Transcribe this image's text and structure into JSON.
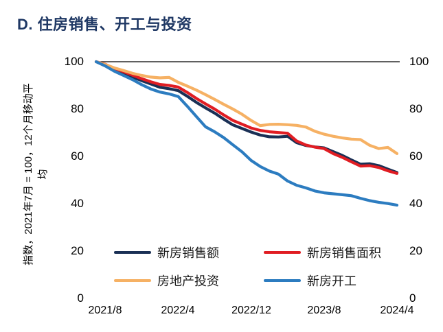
{
  "title": "D. 住房销售、开工与投资",
  "title_color": "#1F3864",
  "y_axis_label": "指数，2021年7月 = 100，12个月移动平均",
  "y_axis_label_line1": "指数，2021年7月 = 100，12个月移动平",
  "y_axis_label_line2": "均",
  "chart_data": {
    "type": "line",
    "title": "D. 住房销售、开工与投资",
    "xlabel": "",
    "ylabel": "指数，2021年7月 = 100，12个月移动平均",
    "ylim": [
      0,
      100
    ],
    "yticks": [
      100,
      80,
      60,
      40,
      20,
      0
    ],
    "y_axis_mirrored_right": true,
    "grid": false,
    "legend_position": "bottom-inside",
    "reference_line": {
      "value": 100,
      "color": "#000000"
    },
    "xtick_labels": [
      "2021/8",
      "2022/4",
      "2022/12",
      "2023/8",
      "2024/4"
    ],
    "xtick_indices": [
      1,
      9,
      17,
      25,
      33
    ],
    "x": [
      "2021/7",
      "2021/8",
      "2021/9",
      "2021/10",
      "2021/11",
      "2021/12",
      "2022/1",
      "2022/2",
      "2022/3",
      "2022/4",
      "2022/5",
      "2022/6",
      "2022/7",
      "2022/8",
      "2022/9",
      "2022/10",
      "2022/11",
      "2022/12",
      "2023/1",
      "2023/2",
      "2023/3",
      "2023/4",
      "2023/5",
      "2023/6",
      "2023/7",
      "2023/8",
      "2023/9",
      "2023/10",
      "2023/11",
      "2023/12",
      "2024/1",
      "2024/2",
      "2024/3",
      "2024/4"
    ],
    "series": [
      {
        "name": "新房销售额",
        "key": "new-home-sales-value",
        "color": "#1A3055",
        "values": [
          100,
          98.7,
          96.8,
          95.3,
          93.5,
          92.0,
          90.6,
          89.2,
          88.6,
          87.8,
          85.4,
          82.8,
          80.5,
          78.3,
          75.7,
          73.3,
          71.8,
          70.3,
          69.0,
          68.3,
          68.2,
          68.5,
          65.8,
          64.6,
          64.0,
          63.6,
          62.0,
          60.4,
          58.5,
          56.7,
          56.9,
          56.1,
          54.6,
          53.2
        ]
      },
      {
        "name": "新房销售面积",
        "key": "new-home-sales-area",
        "color": "#E01D23",
        "values": [
          100,
          98.9,
          97.2,
          95.8,
          94.3,
          92.8,
          91.5,
          90.4,
          90.0,
          89.3,
          87.0,
          84.5,
          82.2,
          80.0,
          77.5,
          75.2,
          73.6,
          72.0,
          71.0,
          70.4,
          70.1,
          69.8,
          66.5,
          64.8,
          63.9,
          63.3,
          61.2,
          59.6,
          57.7,
          55.9,
          56.1,
          55.3,
          53.9,
          52.8
        ]
      },
      {
        "name": "房地产投资",
        "key": "real-estate-investment",
        "color": "#F6B164",
        "values": [
          100,
          98.8,
          97.4,
          96.3,
          95.1,
          94.2,
          93.5,
          93.2,
          93.4,
          91.3,
          89.7,
          88.0,
          86.1,
          84.1,
          82.0,
          80.0,
          77.8,
          75.2,
          73.0,
          73.5,
          73.6,
          73.4,
          73.1,
          72.4,
          70.6,
          69.4,
          68.5,
          67.8,
          67.3,
          67.1,
          64.7,
          63.3,
          63.8,
          61.2
        ]
      },
      {
        "name": "新房开工",
        "key": "new-home-starts",
        "color": "#2C7CC0",
        "values": [
          100,
          98.2,
          96.0,
          94.2,
          92.4,
          90.3,
          88.5,
          87.2,
          86.4,
          85.3,
          81.2,
          76.8,
          72.5,
          70.4,
          67.9,
          64.9,
          61.9,
          58.3,
          55.7,
          53.8,
          52.5,
          49.6,
          47.8,
          46.7,
          45.4,
          44.6,
          44.2,
          43.8,
          43.4,
          42.3,
          41.3,
          40.6,
          40.1,
          39.4
        ]
      }
    ]
  }
}
